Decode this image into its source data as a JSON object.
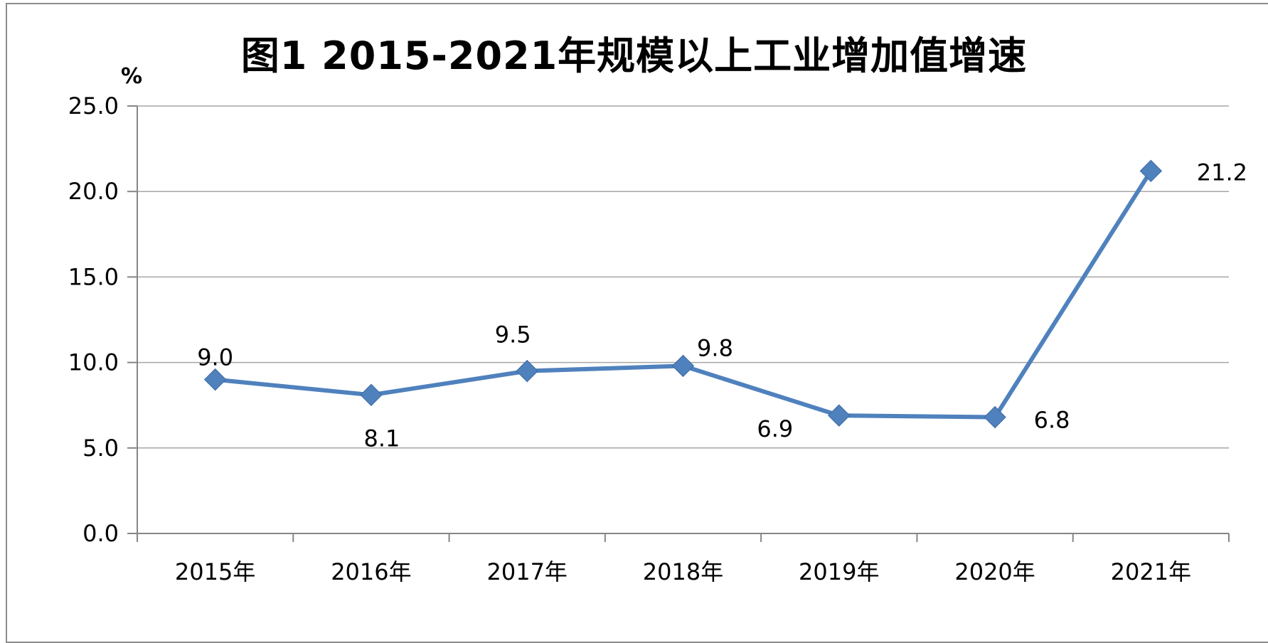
{
  "chart_data": {
    "type": "line",
    "title": "图1  2015-2021年规模以上工业增加值增速",
    "ylabel": "%",
    "xlabel": "",
    "categories": [
      "2015年",
      "2016年",
      "2017年",
      "2018年",
      "2019年",
      "2020年",
      "2021年"
    ],
    "series": [
      {
        "values": [
          9.0,
          8.1,
          9.5,
          9.8,
          6.9,
          6.8,
          21.2
        ],
        "data_labels": [
          "9.0",
          "8.1",
          "9.5",
          "9.8",
          "6.9",
          "6.8",
          "21.2"
        ],
        "color": "#4f81bd",
        "marker": "diamond"
      }
    ],
    "ylim": [
      0,
      25
    ],
    "yticks": [
      "0.0",
      "5.0",
      "10.0",
      "15.0",
      "20.0",
      "25.0"
    ],
    "grid": true,
    "gridline_color": "#a6a6a6",
    "legend": "none"
  }
}
